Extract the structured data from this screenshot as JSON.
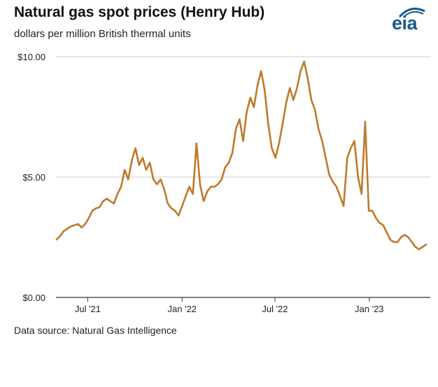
{
  "header": {
    "title": "Natural gas spot prices (Henry Hub)",
    "subtitle": "dollars per million British thermal units",
    "logo_text": "eia"
  },
  "footer": {
    "source": "Data source: Natural Gas Intelligence"
  },
  "colors": {
    "line": "#bf7a2a",
    "grid": "#cccccc",
    "axis": "#333333",
    "logo": "#1a5a8c"
  },
  "chart_data": {
    "type": "line",
    "title": "Natural gas spot prices (Henry Hub)",
    "subtitle": "dollars per million British thermal units",
    "xlabel": "",
    "ylabel": "",
    "ylim": [
      0,
      10
    ],
    "xlim": [
      "2021-04-30",
      "2023-04-30"
    ],
    "yticks": [
      {
        "value": 0,
        "label": "$0.00"
      },
      {
        "value": 5,
        "label": "$5.00"
      },
      {
        "value": 10,
        "label": "$10.00"
      }
    ],
    "xticks": [
      {
        "date": "2021-07-01",
        "label": "Jul '21"
      },
      {
        "date": "2022-01-01",
        "label": "Jan '22"
      },
      {
        "date": "2022-07-01",
        "label": "Jul '22"
      },
      {
        "date": "2023-01-01",
        "label": "Jan '23"
      }
    ],
    "grid": true,
    "legend": "none",
    "series": [
      {
        "color": "#bf7a2a",
        "points": [
          [
            "2021-05-01",
            2.4
          ],
          [
            "2021-05-08",
            2.55
          ],
          [
            "2021-05-15",
            2.75
          ],
          [
            "2021-05-22",
            2.85
          ],
          [
            "2021-05-29",
            2.95
          ],
          [
            "2021-06-05",
            3.0
          ],
          [
            "2021-06-12",
            3.05
          ],
          [
            "2021-06-19",
            2.9
          ],
          [
            "2021-06-26",
            3.05
          ],
          [
            "2021-07-03",
            3.3
          ],
          [
            "2021-07-10",
            3.6
          ],
          [
            "2021-07-17",
            3.7
          ],
          [
            "2021-07-24",
            3.75
          ],
          [
            "2021-07-31",
            4.0
          ],
          [
            "2021-08-07",
            4.1
          ],
          [
            "2021-08-14",
            4.0
          ],
          [
            "2021-08-21",
            3.9
          ],
          [
            "2021-08-28",
            4.3
          ],
          [
            "2021-09-04",
            4.6
          ],
          [
            "2021-09-11",
            5.3
          ],
          [
            "2021-09-18",
            4.9
          ],
          [
            "2021-09-25",
            5.7
          ],
          [
            "2021-10-02",
            6.2
          ],
          [
            "2021-10-09",
            5.5
          ],
          [
            "2021-10-16",
            5.8
          ],
          [
            "2021-10-23",
            5.3
          ],
          [
            "2021-10-30",
            5.6
          ],
          [
            "2021-11-06",
            4.9
          ],
          [
            "2021-11-13",
            4.7
          ],
          [
            "2021-11-20",
            4.9
          ],
          [
            "2021-11-27",
            4.5
          ],
          [
            "2021-12-04",
            3.9
          ],
          [
            "2021-12-11",
            3.7
          ],
          [
            "2021-12-18",
            3.6
          ],
          [
            "2021-12-25",
            3.4
          ],
          [
            "2022-01-01",
            3.8
          ],
          [
            "2022-01-08",
            4.2
          ],
          [
            "2022-01-15",
            4.6
          ],
          [
            "2022-01-22",
            4.3
          ],
          [
            "2022-01-29",
            6.4
          ],
          [
            "2022-02-05",
            4.7
          ],
          [
            "2022-02-12",
            4.0
          ],
          [
            "2022-02-19",
            4.4
          ],
          [
            "2022-02-26",
            4.6
          ],
          [
            "2022-03-05",
            4.6
          ],
          [
            "2022-03-12",
            4.7
          ],
          [
            "2022-03-19",
            4.9
          ],
          [
            "2022-03-26",
            5.4
          ],
          [
            "2022-04-02",
            5.6
          ],
          [
            "2022-04-09",
            6.0
          ],
          [
            "2022-04-16",
            7.0
          ],
          [
            "2022-04-23",
            7.4
          ],
          [
            "2022-04-30",
            6.5
          ],
          [
            "2022-05-07",
            7.7
          ],
          [
            "2022-05-14",
            8.3
          ],
          [
            "2022-05-21",
            7.9
          ],
          [
            "2022-05-28",
            8.8
          ],
          [
            "2022-06-04",
            9.4
          ],
          [
            "2022-06-11",
            8.6
          ],
          [
            "2022-06-18",
            7.2
          ],
          [
            "2022-06-25",
            6.2
          ],
          [
            "2022-07-02",
            5.8
          ],
          [
            "2022-07-09",
            6.4
          ],
          [
            "2022-07-16",
            7.2
          ],
          [
            "2022-07-23",
            8.1
          ],
          [
            "2022-07-30",
            8.7
          ],
          [
            "2022-08-06",
            8.2
          ],
          [
            "2022-08-13",
            8.7
          ],
          [
            "2022-08-20",
            9.4
          ],
          [
            "2022-08-27",
            9.8
          ],
          [
            "2022-09-03",
            9.1
          ],
          [
            "2022-09-10",
            8.2
          ],
          [
            "2022-09-17",
            7.8
          ],
          [
            "2022-09-24",
            7.0
          ],
          [
            "2022-10-01",
            6.5
          ],
          [
            "2022-10-08",
            5.8
          ],
          [
            "2022-10-15",
            5.1
          ],
          [
            "2022-10-22",
            4.8
          ],
          [
            "2022-10-29",
            4.6
          ],
          [
            "2022-11-05",
            4.2
          ],
          [
            "2022-11-12",
            3.8
          ],
          [
            "2022-11-19",
            5.8
          ],
          [
            "2022-11-26",
            6.2
          ],
          [
            "2022-12-03",
            6.5
          ],
          [
            "2022-12-10",
            5.0
          ],
          [
            "2022-12-17",
            4.3
          ],
          [
            "2022-12-24",
            7.3
          ],
          [
            "2022-12-31",
            3.6
          ],
          [
            "2023-01-07",
            3.6
          ],
          [
            "2023-01-14",
            3.3
          ],
          [
            "2023-01-21",
            3.1
          ],
          [
            "2023-01-28",
            3.0
          ],
          [
            "2023-02-04",
            2.7
          ],
          [
            "2023-02-11",
            2.4
          ],
          [
            "2023-02-18",
            2.3
          ],
          [
            "2023-02-25",
            2.3
          ],
          [
            "2023-03-04",
            2.5
          ],
          [
            "2023-03-11",
            2.6
          ],
          [
            "2023-03-18",
            2.5
          ],
          [
            "2023-03-25",
            2.3
          ],
          [
            "2023-04-01",
            2.1
          ],
          [
            "2023-04-08",
            2.0
          ],
          [
            "2023-04-15",
            2.1
          ],
          [
            "2023-04-22",
            2.2
          ]
        ]
      }
    ]
  }
}
